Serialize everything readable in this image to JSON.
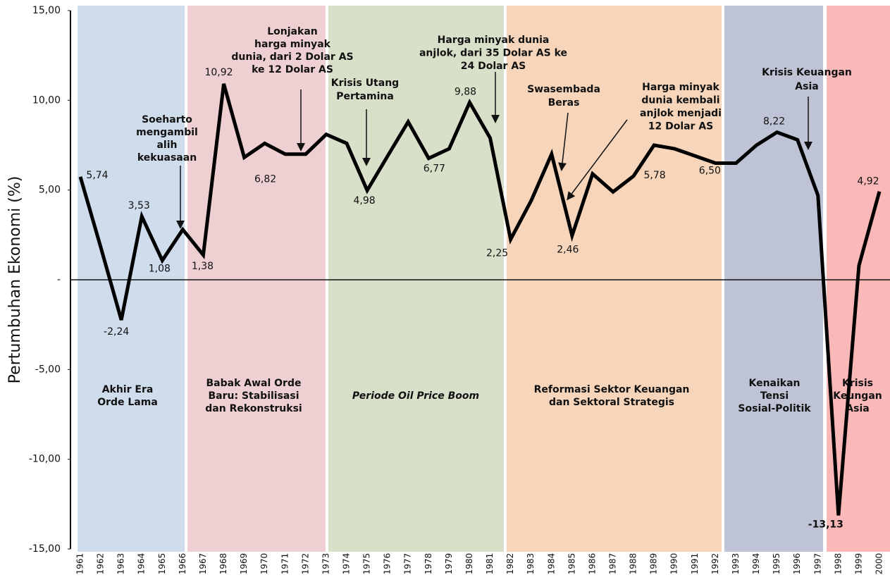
{
  "chart_data": {
    "type": "line",
    "y_label": "Pertumbuhan Ekonomi (%)",
    "categories": [
      "1961",
      "1962",
      "1963",
      "1964",
      "1965",
      "1966",
      "1967",
      "1968",
      "1969",
      "1970",
      "1971",
      "1972",
      "1973",
      "1974",
      "1975",
      "1976",
      "1977",
      "1978",
      "1979",
      "1980",
      "1981",
      "1982",
      "1983",
      "1984",
      "1985",
      "1986",
      "1987",
      "1988",
      "1989",
      "1990",
      "1991",
      "1992",
      "1993",
      "1994",
      "1995",
      "1996",
      "1997",
      "1998",
      "1999",
      "2000"
    ],
    "series": [
      {
        "name": "Pertumbuhan Ekonomi",
        "color": "#000000",
        "values": [
          5.74,
          1.8,
          -2.24,
          3.53,
          1.08,
          2.8,
          1.38,
          10.92,
          6.82,
          7.6,
          7.0,
          7.0,
          8.1,
          7.6,
          4.98,
          6.9,
          8.8,
          6.77,
          7.3,
          9.88,
          7.9,
          2.25,
          4.4,
          7.0,
          2.46,
          5.9,
          4.9,
          5.78,
          7.5,
          7.3,
          6.9,
          6.5,
          6.5,
          7.5,
          8.22,
          7.8,
          4.7,
          -13.13,
          0.79,
          4.92
        ],
        "value_labels": [
          "5,74",
          null,
          "-2,24",
          "3,53",
          "1,08",
          null,
          "1,38",
          "10,92",
          "6,82",
          null,
          null,
          null,
          null,
          null,
          "4,98",
          null,
          null,
          "6,77",
          null,
          "9,88",
          null,
          "2,25",
          null,
          null,
          "2,46",
          null,
          null,
          "5,78",
          null,
          null,
          null,
          "6,50",
          null,
          null,
          "8,22",
          null,
          null,
          "-13,13",
          null,
          "4,92"
        ]
      }
    ],
    "ylim": [
      -15,
      15
    ],
    "yticks": [
      {
        "value": 15,
        "label": "15,00"
      },
      {
        "value": 10,
        "label": "10,00"
      },
      {
        "value": 5,
        "label": "5,00"
      },
      {
        "value": 0,
        "label": "-"
      },
      {
        "value": -5,
        "label": "-5,00"
      },
      {
        "value": -10,
        "label": "-10,00"
      },
      {
        "value": -15,
        "label": "-15,00"
      }
    ],
    "periods": [
      {
        "lines": [
          "Akhir Era",
          "Orde Lama"
        ]
      },
      {
        "lines": [
          "Babak Awal Orde",
          "Baru: Stabilisasi",
          "dan Rekonstruksi"
        ]
      },
      {
        "lines": [
          "Periode Oil Price Boom"
        ]
      },
      {
        "lines": [
          "Reformasi Sektor Keuangan",
          "dan Sektoral Strategis"
        ]
      },
      {
        "lines": [
          "Kenaikan",
          "Tensi",
          "Sosial-Politik"
        ]
      },
      {
        "lines": [
          "Krisis",
          "Keungan",
          "Asia"
        ]
      }
    ],
    "annotations": [
      {
        "lines": [
          "Soeharto",
          "mengambil",
          "alih",
          "kekuasaan"
        ]
      },
      {
        "lines": [
          "Lonjakan",
          "harga minyak",
          "dunia, dari 2 Dolar AS",
          "ke 12 Dolar AS"
        ]
      },
      {
        "lines": [
          "Krisis Utang",
          "Pertamina"
        ]
      },
      {
        "lines": [
          "Harga minyak dunia",
          "anjlok, dari 35 Dolar AS ke",
          "24 Dolar AS"
        ]
      },
      {
        "lines": [
          "Swasembada",
          "Beras"
        ]
      },
      {
        "lines": [
          "Harga minyak",
          "dunia kembali",
          "anjlok menjadi",
          "12 Dolar AS"
        ]
      },
      {
        "lines": [
          "Krisis Keuangan",
          "Asia"
        ]
      }
    ]
  }
}
